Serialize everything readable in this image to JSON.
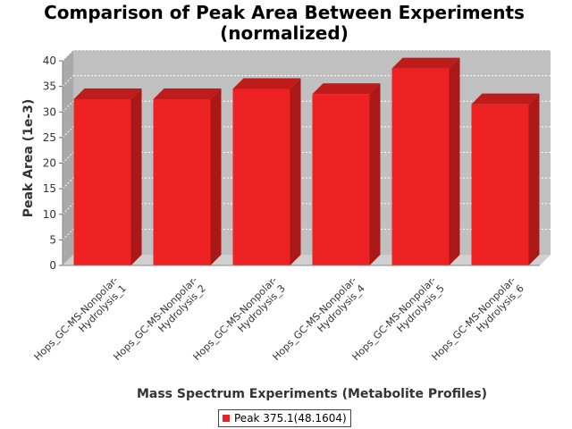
{
  "chart_data": {
    "type": "bar",
    "title": [
      "Comparison of Peak Area Between Experiments",
      "(normalized)"
    ],
    "xlabel": "Mass Spectrum Experiments (Metabolite Profiles)",
    "ylabel": "Peak Area (1e-3)",
    "ylim": [
      0,
      40
    ],
    "yticks": [
      0,
      5,
      10,
      15,
      20,
      25,
      30,
      35,
      40
    ],
    "categories": [
      [
        "Hops_GC-MS-Nonpolar-",
        "Hydrolysis_1"
      ],
      [
        "Hops_GC-MS-Nonpolar-",
        "Hydrolysis_2"
      ],
      [
        "Hops_GC-MS-Nonpolar-",
        "Hydrolysis_3"
      ],
      [
        "Hops_GC-MS-Nonpolar-",
        "Hydrolysis_4"
      ],
      [
        "Hops_GC-MS-Nonpolar-",
        "Hydrolysis_5"
      ],
      [
        "Hops_GC-MS-Nonpolar-",
        "Hydrolysis_6"
      ]
    ],
    "series": [
      {
        "name": "Peak 375.1(48.1604)",
        "color": "#ee2222",
        "values": [
          32.5,
          32.5,
          34.5,
          33.5,
          38.5,
          31.5
        ]
      }
    ],
    "legend_position": "bottom",
    "grid": true,
    "style": "3d"
  }
}
